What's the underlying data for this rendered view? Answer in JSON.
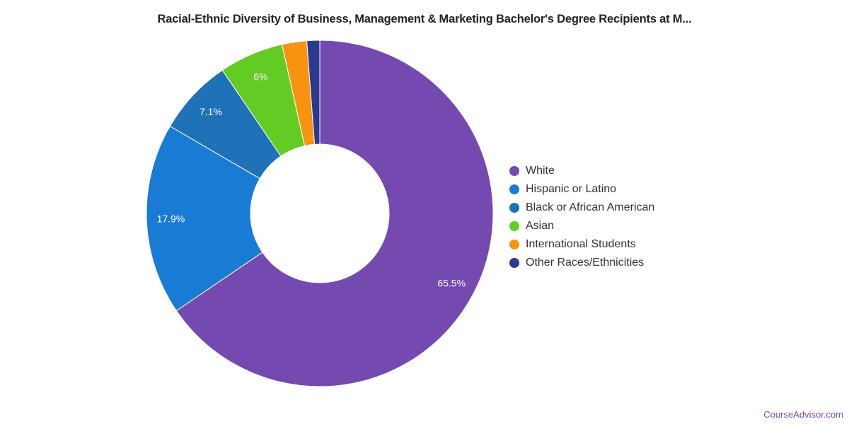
{
  "chart_data": {
    "type": "pie",
    "donut": true,
    "title": "Racial-Ethnic Diversity of Business, Management & Marketing Bachelor's Degree Recipients at M...",
    "legend_position": "right",
    "slices": [
      {
        "label": "White",
        "value": 65.5,
        "data_label": "65.5%",
        "color": "#7449b0"
      },
      {
        "label": "Hispanic or Latino",
        "value": 17.9,
        "data_label": "17.9%",
        "color": "#1a7bd4"
      },
      {
        "label": "Black or African American",
        "value": 7.1,
        "data_label": "7.1%",
        "color": "#1f72b8"
      },
      {
        "label": "Asian",
        "value": 6.0,
        "data_label": "6%",
        "color": "#63cc24"
      },
      {
        "label": "International Students",
        "value": 2.3,
        "data_label": "",
        "color": "#f7930e"
      },
      {
        "label": "Other Races/Ethnicities",
        "value": 1.2,
        "data_label": "",
        "color": "#2b3990"
      }
    ]
  },
  "watermark": "CourseAdvisor.com"
}
